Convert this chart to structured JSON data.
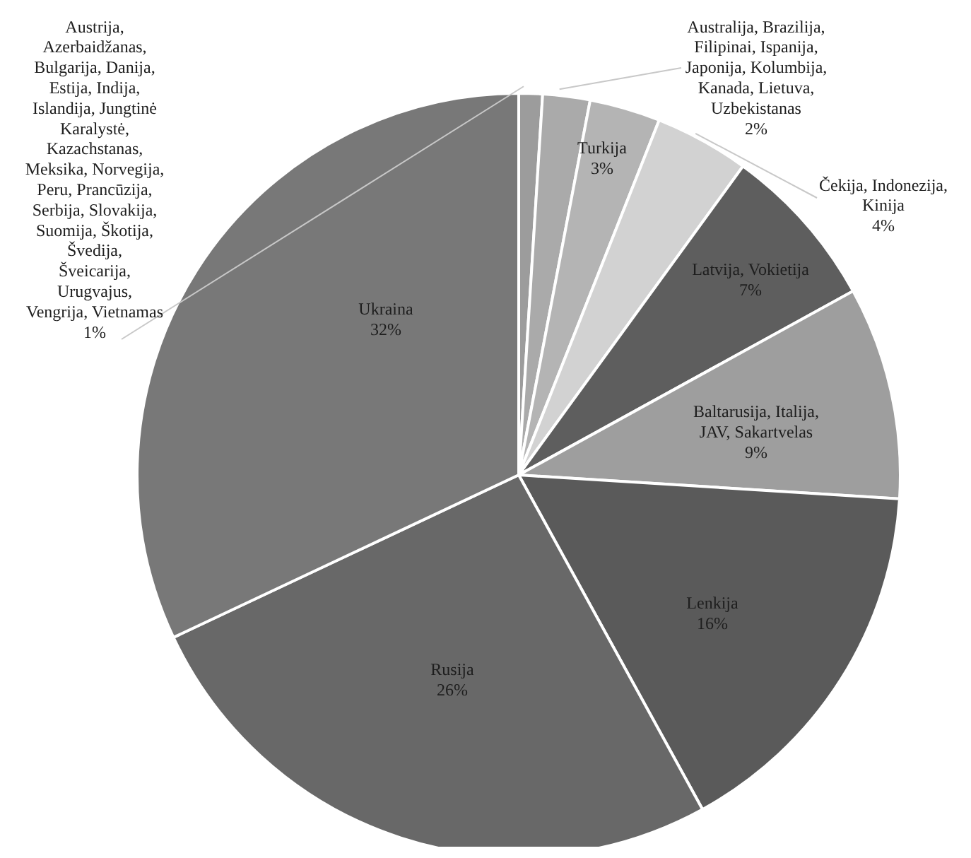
{
  "chart_data": {
    "type": "pie",
    "categories": [
      "Austrija, Azerbaidžanas, Bulgarija, Danija, Estija, Indija, Islandija, Jungtinė Karalystė, Kazachstanas, Meksika, Norvegija, Peru, Prancūzija, Serbija, Slovakija, Suomija, Škotija, Švedija, Šveicarija, Urugvajus, Vengrija, Vietnamas",
      "Australija, Brazilija, Filipinai, Ispanija, Japonija, Kolumbija, Kanada, Lietuva, Uzbekistanas",
      "Turkija",
      "Čekija, Indonezija, Kinija",
      "Latvija, Vokietija",
      "Baltarusija, Italija, JAV, Sakartvelas",
      "Lenkija",
      "Rusija",
      "Ukraina"
    ],
    "values": [
      1,
      2,
      3,
      4,
      7,
      9,
      16,
      26,
      32
    ],
    "value_labels": [
      "1%",
      "2%",
      "3%",
      "4%",
      "7%",
      "9%",
      "16%",
      "26%",
      "32%"
    ],
    "colors": [
      "#9c9c9c",
      "#aaaaaa",
      "#b4b4b4",
      "#d2d2d2",
      "#5e5e5e",
      "#9e9e9e",
      "#5a5a5a",
      "#686868",
      "#787878"
    ]
  }
}
